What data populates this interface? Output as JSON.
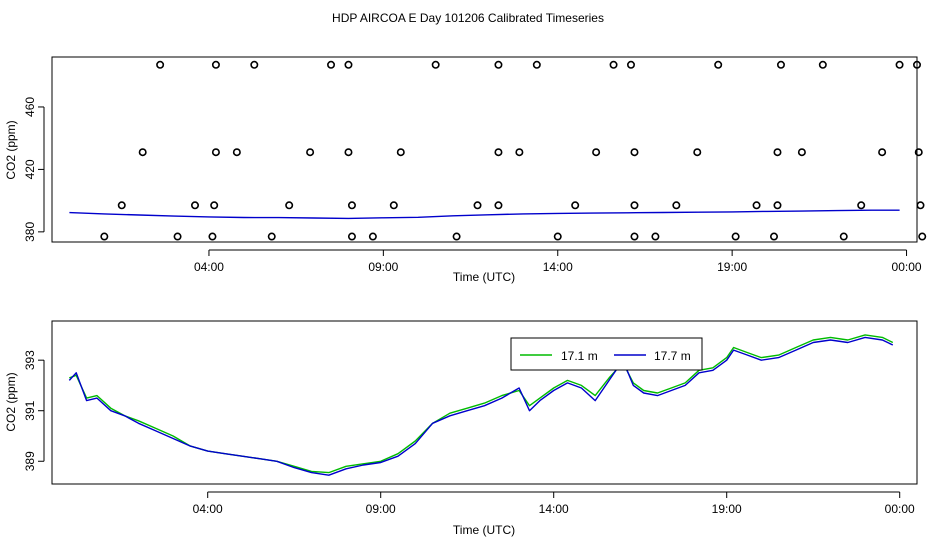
{
  "title": "HDP AIRCOA E  Day 101206  Calibrated Timeseries",
  "chart_data": [
    {
      "type": "scatter",
      "xlabel": "Time (UTC)",
      "ylabel": "CO2 (ppm)",
      "xticks": [
        4,
        9,
        14,
        19,
        24
      ],
      "xtick_labels": [
        "04:00",
        "09:00",
        "14:00",
        "19:00",
        "00:00"
      ],
      "xlim": [
        -0.5,
        24.3
      ],
      "yticks": [
        380,
        420,
        460
      ],
      "ytick_labels": [
        "380",
        "420",
        "460"
      ],
      "ylim": [
        373.5,
        492
      ],
      "grid": false,
      "calibration_points": [
        {
          "x": 1.0,
          "y": 377
        },
        {
          "x": 1.5,
          "y": 397
        },
        {
          "x": 2.1,
          "y": 431
        },
        {
          "x": 2.6,
          "y": 487
        },
        {
          "x": 3.1,
          "y": 377
        },
        {
          "x": 3.6,
          "y": 397
        },
        {
          "x": 4.1,
          "y": 377
        },
        {
          "x": 4.15,
          "y": 397
        },
        {
          "x": 4.2,
          "y": 431
        },
        {
          "x": 4.2,
          "y": 487
        },
        {
          "x": 4.8,
          "y": 431
        },
        {
          "x": 5.3,
          "y": 487
        },
        {
          "x": 5.8,
          "y": 377
        },
        {
          "x": 6.3,
          "y": 397
        },
        {
          "x": 6.9,
          "y": 431
        },
        {
          "x": 7.5,
          "y": 487
        },
        {
          "x": 8.0,
          "y": 487
        },
        {
          "x": 8.0,
          "y": 431
        },
        {
          "x": 8.1,
          "y": 397
        },
        {
          "x": 8.1,
          "y": 377
        },
        {
          "x": 8.7,
          "y": 377
        },
        {
          "x": 9.3,
          "y": 397
        },
        {
          "x": 9.5,
          "y": 431
        },
        {
          "x": 10.5,
          "y": 487
        },
        {
          "x": 11.1,
          "y": 377
        },
        {
          "x": 11.7,
          "y": 397
        },
        {
          "x": 12.3,
          "y": 397
        },
        {
          "x": 12.3,
          "y": 431
        },
        {
          "x": 12.3,
          "y": 487
        },
        {
          "x": 12.9,
          "y": 431
        },
        {
          "x": 13.4,
          "y": 487
        },
        {
          "x": 14.0,
          "y": 377
        },
        {
          "x": 14.5,
          "y": 397
        },
        {
          "x": 15.1,
          "y": 431
        },
        {
          "x": 15.6,
          "y": 487
        },
        {
          "x": 16.1,
          "y": 487
        },
        {
          "x": 16.2,
          "y": 431
        },
        {
          "x": 16.2,
          "y": 397
        },
        {
          "x": 16.2,
          "y": 377
        },
        {
          "x": 16.8,
          "y": 377
        },
        {
          "x": 17.4,
          "y": 397
        },
        {
          "x": 18.0,
          "y": 431
        },
        {
          "x": 18.6,
          "y": 487
        },
        {
          "x": 19.1,
          "y": 377
        },
        {
          "x": 19.7,
          "y": 397
        },
        {
          "x": 20.2,
          "y": 377
        },
        {
          "x": 20.3,
          "y": 397
        },
        {
          "x": 20.3,
          "y": 431
        },
        {
          "x": 20.4,
          "y": 487
        },
        {
          "x": 21.0,
          "y": 431
        },
        {
          "x": 21.6,
          "y": 487
        },
        {
          "x": 22.2,
          "y": 377
        },
        {
          "x": 22.7,
          "y": 397
        },
        {
          "x": 23.3,
          "y": 431
        },
        {
          "x": 23.8,
          "y": 487
        },
        {
          "x": 24.3,
          "y": 487
        },
        {
          "x": 24.35,
          "y": 431
        },
        {
          "x": 24.4,
          "y": 397
        },
        {
          "x": 24.45,
          "y": 377
        }
      ],
      "line_series": {
        "color": "#0000cc",
        "x": [
          0,
          1,
          2,
          3,
          4,
          5,
          6,
          7,
          8,
          9,
          10,
          11,
          12,
          13,
          14,
          15,
          16,
          17,
          18,
          19,
          20,
          21,
          22,
          23,
          23.8
        ],
        "y": [
          392.3,
          391.5,
          390.8,
          390.1,
          389.6,
          389.2,
          389.1,
          388.9,
          388.6,
          389.0,
          389.3,
          390.3,
          390.9,
          391.5,
          391.8,
          392.0,
          392.2,
          392.4,
          392.6,
          392.8,
          393.1,
          393.3,
          393.6,
          393.9,
          393.9
        ]
      }
    },
    {
      "type": "line",
      "xlabel": "Time (UTC)",
      "ylabel": "CO2 (ppm)",
      "xticks": [
        4,
        9,
        14,
        19,
        24
      ],
      "xtick_labels": [
        "04:00",
        "09:00",
        "14:00",
        "19:00",
        "00:00"
      ],
      "xlim": [
        -0.5,
        24.5
      ],
      "yticks": [
        389,
        391,
        393
      ],
      "ytick_labels": [
        "389",
        "391",
        "393"
      ],
      "ylim": [
        388.1,
        394.55
      ],
      "grid": false,
      "legend": {
        "position": "top-right"
      },
      "series": [
        {
          "name": "17.1 m",
          "color": "#00bb00",
          "x": [
            0,
            0.2,
            0.5,
            0.8,
            1.2,
            1.6,
            2.0,
            2.5,
            3.0,
            3.5,
            4.0,
            4.5,
            5.0,
            5.5,
            6.0,
            6.5,
            7.0,
            7.5,
            8.0,
            8.5,
            9.0,
            9.5,
            10.0,
            10.5,
            11.0,
            11.5,
            12.0,
            12.5,
            13.0,
            13.3,
            13.6,
            14.0,
            14.4,
            14.8,
            15.2,
            15.6,
            16.0,
            16.3,
            16.6,
            17.0,
            17.4,
            17.8,
            18.2,
            18.6,
            19.0,
            19.2,
            19.6,
            20.0,
            20.5,
            21.0,
            21.5,
            22.0,
            22.5,
            23.0,
            23.5,
            23.8
          ],
          "y": [
            392.3,
            392.4,
            391.5,
            391.6,
            391.1,
            390.8,
            390.6,
            390.3,
            390.0,
            389.6,
            389.4,
            389.3,
            389.2,
            389.1,
            389.0,
            388.8,
            388.6,
            388.55,
            388.8,
            388.9,
            389.0,
            389.3,
            389.8,
            390.5,
            390.9,
            391.1,
            391.3,
            391.6,
            391.8,
            391.2,
            391.5,
            391.9,
            392.2,
            392.0,
            391.6,
            392.3,
            392.9,
            392.1,
            391.8,
            391.7,
            391.9,
            392.1,
            392.6,
            392.7,
            393.1,
            393.5,
            393.3,
            393.1,
            393.2,
            393.5,
            393.8,
            393.9,
            393.8,
            394.0,
            393.9,
            393.7
          ]
        },
        {
          "name": "17.7 m",
          "color": "#0000cc",
          "x": [
            0,
            0.2,
            0.5,
            0.8,
            1.2,
            1.6,
            2.0,
            2.5,
            3.0,
            3.5,
            4.0,
            4.5,
            5.0,
            5.5,
            6.0,
            6.5,
            7.0,
            7.5,
            8.0,
            8.5,
            9.0,
            9.5,
            10.0,
            10.5,
            11.0,
            11.5,
            12.0,
            12.5,
            13.0,
            13.3,
            13.6,
            14.0,
            14.4,
            14.8,
            15.2,
            15.6,
            16.0,
            16.3,
            16.6,
            17.0,
            17.4,
            17.8,
            18.2,
            18.6,
            19.0,
            19.2,
            19.6,
            20.0,
            20.5,
            21.0,
            21.5,
            22.0,
            22.5,
            23.0,
            23.5,
            23.8
          ],
          "y": [
            392.2,
            392.5,
            391.4,
            391.5,
            391.0,
            390.8,
            390.5,
            390.2,
            389.9,
            389.6,
            389.4,
            389.3,
            389.2,
            389.1,
            389.0,
            388.75,
            388.55,
            388.45,
            388.7,
            388.85,
            388.95,
            389.2,
            389.7,
            390.5,
            390.8,
            391.0,
            391.2,
            391.5,
            391.9,
            391.0,
            391.4,
            391.8,
            392.1,
            391.9,
            391.4,
            392.2,
            393.0,
            392.0,
            391.7,
            391.6,
            391.8,
            392.0,
            392.5,
            392.6,
            393.0,
            393.4,
            393.2,
            393.0,
            393.1,
            393.4,
            393.7,
            393.8,
            393.7,
            393.9,
            393.8,
            393.6
          ]
        }
      ]
    }
  ]
}
